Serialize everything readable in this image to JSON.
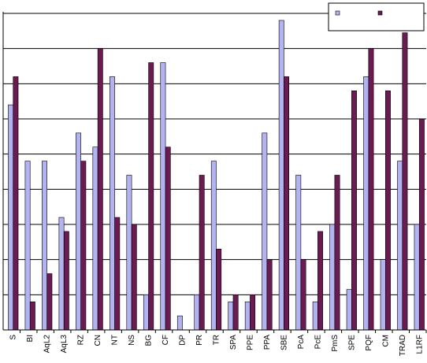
{
  "chart_data": {
    "type": "bar",
    "title": "",
    "xlabel": "",
    "ylabel": "",
    "ylim": [
      0,
      9
    ],
    "grid": true,
    "gridline_count": 9,
    "y_tick_labels_shown": false,
    "legend_placement": "top-right",
    "categories": [
      "S",
      "BI",
      "AqL2",
      "AqL3",
      "RZ",
      "CN",
      "NT",
      "NS",
      "BG",
      "CF",
      "DP",
      "PR",
      "TR",
      "SPA",
      "PPE",
      "PPA",
      "SBE",
      "PcA",
      "PcE",
      "PmS",
      "SPE",
      "PQF",
      "CM",
      "TRAD",
      "L1RF"
    ],
    "series": [
      {
        "color": "#b3b3f2",
        "values": [
          6.4,
          4.8,
          4.8,
          3.2,
          5.6,
          5.2,
          7.2,
          4.4,
          1.0,
          7.6,
          0.4,
          1.0,
          4.8,
          0.8,
          0.8,
          5.6,
          8.8,
          4.4,
          0.8,
          3.0,
          1.15,
          7.2,
          2.0,
          4.8,
          3.0
        ]
      },
      {
        "color": "#6b1a52",
        "values": [
          7.2,
          0.8,
          1.6,
          2.8,
          4.8,
          8.0,
          3.2,
          3.0,
          7.6,
          5.2,
          0.0,
          4.4,
          2.3,
          1.0,
          1.0,
          2.0,
          7.2,
          2.0,
          2.8,
          4.4,
          6.8,
          8.0,
          6.8,
          8.45,
          6.0
        ]
      }
    ]
  }
}
